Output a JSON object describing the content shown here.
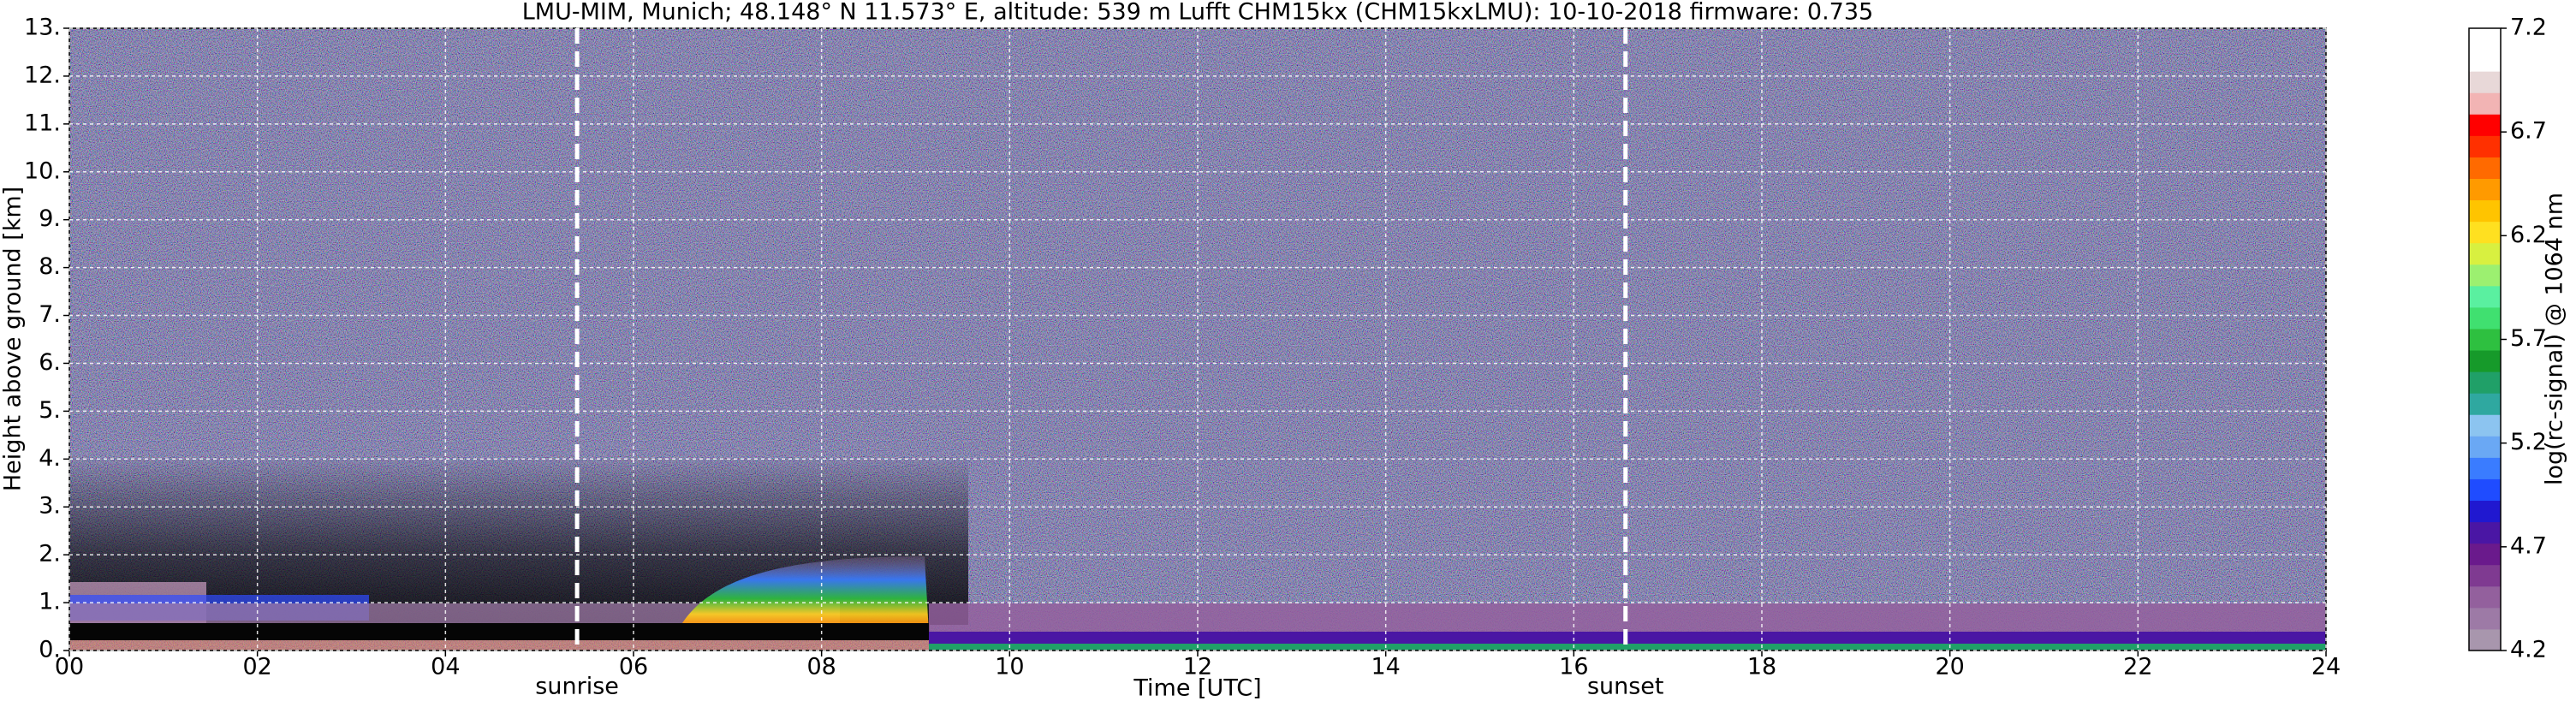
{
  "chart_data": {
    "type": "heatmap",
    "title": "LMU-MIM, Munich; 48.148° N 11.573° E, altitude: 539 m    Lufft CHM15kx (CHM15kxLMU): 10-10-2018    firmware: 0.735",
    "x_label": "Time [UTC]",
    "y_label": "Height above ground [km]",
    "colorbar_label": "log(rc-signal) @ 1064 nm",
    "xlim": [
      0,
      24
    ],
    "xticks": [
      {
        "value": 0,
        "label": "00"
      },
      {
        "value": 2,
        "label": "02"
      },
      {
        "value": 4,
        "label": "04"
      },
      {
        "value": 6,
        "label": "06"
      },
      {
        "value": 8,
        "label": "08"
      },
      {
        "value": 10,
        "label": "10"
      },
      {
        "value": 12,
        "label": "12"
      },
      {
        "value": 14,
        "label": "14"
      },
      {
        "value": 16,
        "label": "16"
      },
      {
        "value": 18,
        "label": "18"
      },
      {
        "value": 20,
        "label": "20"
      },
      {
        "value": 22,
        "label": "22"
      },
      {
        "value": 24,
        "label": "24"
      }
    ],
    "ylim": [
      0,
      13
    ],
    "yticks": [
      {
        "value": 0,
        "label": "0."
      },
      {
        "value": 1,
        "label": "1."
      },
      {
        "value": 2,
        "label": "2."
      },
      {
        "value": 3,
        "label": "3."
      },
      {
        "value": 4,
        "label": "4."
      },
      {
        "value": 5,
        "label": "5."
      },
      {
        "value": 6,
        "label": "6."
      },
      {
        "value": 7,
        "label": "7."
      },
      {
        "value": 8,
        "label": "8."
      },
      {
        "value": 9,
        "label": "9."
      },
      {
        "value": 10,
        "label": "10."
      },
      {
        "value": 11,
        "label": "11."
      },
      {
        "value": 12,
        "label": "12."
      },
      {
        "value": 13,
        "label": "13."
      }
    ],
    "clim": [
      4.2,
      7.2
    ],
    "cticks": [
      4.2,
      4.7,
      5.2,
      5.7,
      6.2,
      6.7,
      7.2
    ],
    "colormap": [
      "#a896ad",
      "#9d7aa6",
      "#93609d",
      "#7f3a91",
      "#6a1a8c",
      "#4a16a4",
      "#2018d0",
      "#1f4cff",
      "#3a7cff",
      "#6aa8f4",
      "#8cc4f0",
      "#2fa8a0",
      "#20a068",
      "#169a2a",
      "#2ec040",
      "#40e070",
      "#5af0a0",
      "#9cf070",
      "#d8f040",
      "#ffe020",
      "#ffc400",
      "#ff9a00",
      "#ff6a00",
      "#ff3000",
      "#ff0000",
      "#f2b4b4",
      "#e8d8d8",
      "#ffffff",
      "#ffffff"
    ],
    "grid": true,
    "vlines": [
      {
        "x": 5.4,
        "label": "sunrise"
      },
      {
        "x": 16.55,
        "label": "sunset"
      }
    ]
  }
}
